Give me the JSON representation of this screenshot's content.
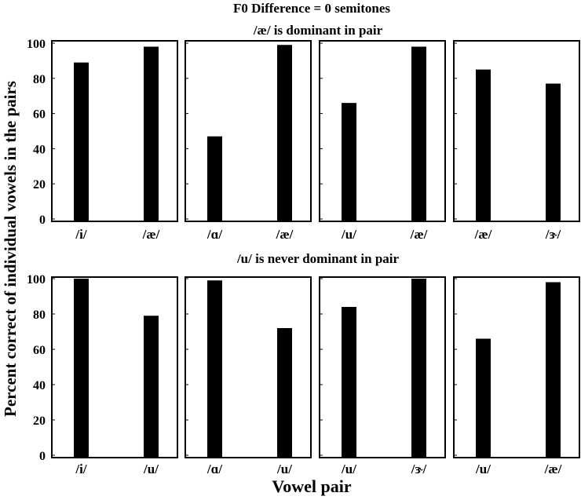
{
  "chart_data": {
    "type": "bar",
    "title": "F0 Difference = 0 semitones",
    "xlabel": "Vowel pair",
    "ylabel": "Percent correct of individual vowels in the pairs",
    "ylim": [
      0,
      100
    ],
    "yticks": [
      "0",
      "20",
      "40",
      "60",
      "80",
      "100"
    ],
    "grid": false,
    "rows": [
      {
        "subtitle": "/æ/ is dominant in pair",
        "panels": [
          {
            "categories": [
              "/i/",
              "/æ/"
            ],
            "values": [
              89,
              98
            ]
          },
          {
            "categories": [
              "/ɑ/",
              "/æ/"
            ],
            "values": [
              47,
              99
            ]
          },
          {
            "categories": [
              "/u/",
              "/æ/"
            ],
            "values": [
              66,
              98
            ]
          },
          {
            "categories": [
              "/æ/",
              "/ɝ/"
            ],
            "values": [
              85,
              77
            ]
          }
        ]
      },
      {
        "subtitle": "/u/ is never dominant in pair",
        "panels": [
          {
            "categories": [
              "/i/",
              "/u/"
            ],
            "values": [
              100,
              79
            ]
          },
          {
            "categories": [
              "/ɑ/",
              "/u/"
            ],
            "values": [
              99,
              72
            ]
          },
          {
            "categories": [
              "/u/",
              "/ɝ/"
            ],
            "values": [
              84,
              100
            ]
          },
          {
            "categories": [
              "/u/",
              "/æ/"
            ],
            "values": [
              66,
              98
            ]
          }
        ]
      }
    ],
    "bar_color": "#000000"
  }
}
